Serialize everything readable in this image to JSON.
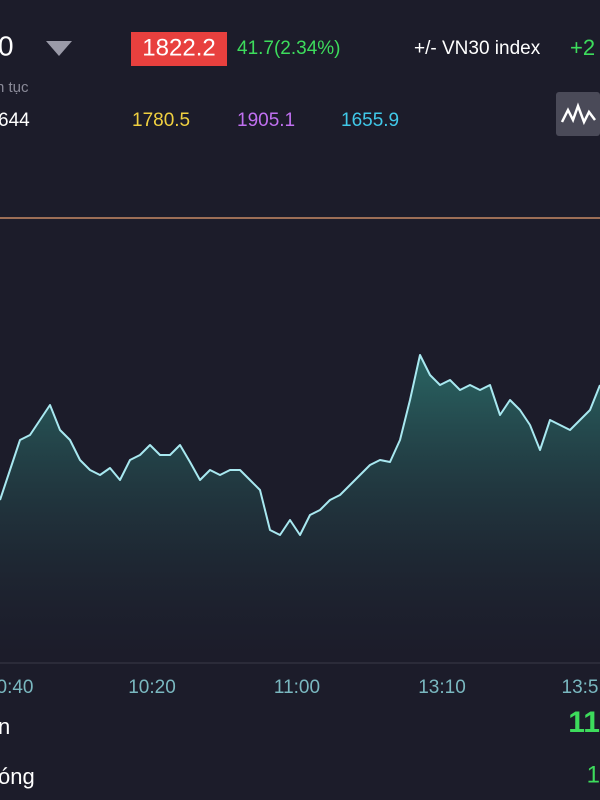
{
  "header": {
    "symbol": "0",
    "price": "1822.2",
    "change": "41.7(2.34%)",
    "compare_label": "+/- VN30 index",
    "compare_value": "+2"
  },
  "subheader": {
    "label": "n tục",
    "volume": "644",
    "reference": "1780.5",
    "ceiling": "1905.1",
    "floor": "1655.9"
  },
  "chart_data": {
    "type": "area",
    "xlim": [
      0,
      60
    ],
    "ylim": [
      0,
      450
    ],
    "xticks": [
      {
        "value": 1.5,
        "label": "0:40"
      },
      {
        "value": 15.2,
        "label": "10:20"
      },
      {
        "value": 29.7,
        "label": "11:00"
      },
      {
        "value": 44.2,
        "label": "13:10"
      },
      {
        "value": 58,
        "label": "13:5"
      }
    ],
    "reference_line": 442,
    "color": "#a8e8f0",
    "values": [
      160,
      190,
      220,
      225,
      240,
      255,
      230,
      220,
      200,
      190,
      185,
      192,
      180,
      200,
      205,
      215,
      205,
      205,
      215,
      198,
      180,
      190,
      185,
      190,
      190,
      180,
      170,
      130,
      125,
      140,
      125,
      145,
      150,
      160,
      165,
      175,
      185,
      195,
      200,
      198,
      220,
      260,
      305,
      285,
      275,
      280,
      270,
      275,
      270,
      275,
      245,
      260,
      250,
      235,
      210,
      240,
      235,
      230,
      240,
      250,
      275
    ]
  },
  "footer": {
    "row1_label": "n",
    "row1_value": "11",
    "row2_label": "óng",
    "row2_value": "1"
  }
}
